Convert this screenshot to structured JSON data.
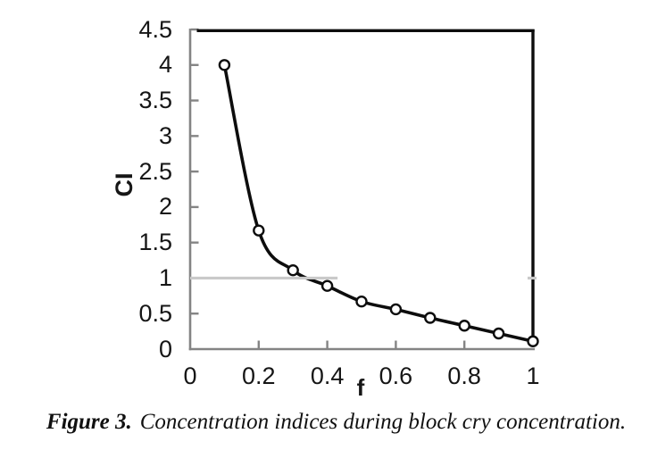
{
  "chart_data": {
    "type": "line",
    "title": "",
    "xlabel": "f",
    "ylabel": "CI",
    "x": [
      0.1,
      0.2,
      0.3,
      0.4,
      0.5,
      0.6,
      0.7,
      0.8,
      0.9,
      1.0
    ],
    "series": [
      {
        "name": "CI",
        "values": [
          4.0,
          1.67,
          1.11,
          0.89,
          0.67,
          0.56,
          0.44,
          0.33,
          0.22,
          0.11
        ]
      }
    ],
    "xlim": [
      0,
      1
    ],
    "ylim": [
      0,
      4.5
    ],
    "x_ticks": [
      0,
      0.2,
      0.4,
      0.6,
      0.8,
      1
    ],
    "x_tick_labels": [
      "0",
      "0.2",
      "0.4",
      "0.6",
      "0.8",
      "1"
    ],
    "y_ticks": [
      0,
      0.5,
      1,
      1.5,
      2,
      2.5,
      3,
      3.5,
      4,
      4.5
    ],
    "y_tick_labels": [
      "0",
      "0.5",
      "1",
      "1.5",
      "2",
      "2.5",
      "3",
      "3.5",
      "4",
      "4.5"
    ],
    "grid": "off",
    "legend": "none",
    "marker": "open-circle",
    "smoothed_line": true,
    "reference_line": {
      "y": 1,
      "x_start": 0,
      "x_end": 0.43,
      "right_edge_tick": true
    },
    "colors": {
      "line": "#0d0d0d",
      "marker_fill": "#ffffff",
      "marker_stroke": "#0d0d0d",
      "axis": "#848484",
      "tick": "#848484",
      "plot_border": "#0d0d0d",
      "reference_line": "#c9c9c9",
      "text": "#161616"
    }
  },
  "caption": {
    "label": "Figure 3.",
    "text": "Concentration indices during block cry concentration."
  }
}
